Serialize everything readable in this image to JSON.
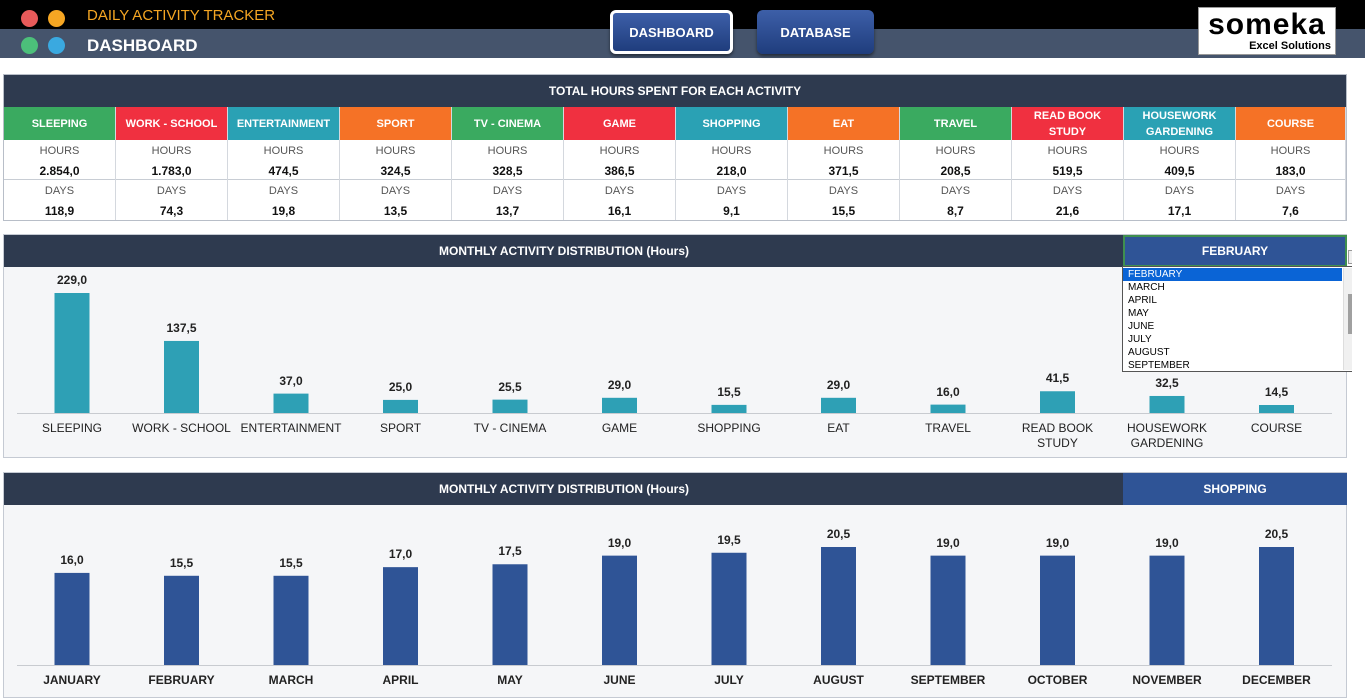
{
  "header": {
    "subtitle": "DAILY ACTIVITY TRACKER",
    "title": "DASHBOARD",
    "nav": [
      {
        "label": "DASHBOARD",
        "active": true
      },
      {
        "label": "DATABASE",
        "active": false
      }
    ],
    "brand": {
      "name": "someka",
      "tagline": "Excel Solutions"
    },
    "icon_names": [
      "apple-icon",
      "music-icon",
      "chat-icon",
      "people-icon"
    ]
  },
  "totals": {
    "title": "TOTAL HOURS SPENT FOR EACH ACTIVITY",
    "hours_label": "HOURS",
    "days_label": "DAYS",
    "activities": [
      {
        "name": "SLEEPING",
        "hours": "2.854,0",
        "days": "118,9",
        "color": "#3aaa60"
      },
      {
        "name": "WORK - SCHOOL",
        "hours": "1.783,0",
        "days": "74,3",
        "color": "#f03040"
      },
      {
        "name": "ENTERTAINMENT",
        "hours": "474,5",
        "days": "19,8",
        "color": "#2aa1b4"
      },
      {
        "name": "SPORT",
        "hours": "324,5",
        "days": "13,5",
        "color": "#f57226"
      },
      {
        "name": "TV - CINEMA",
        "hours": "328,5",
        "days": "13,7",
        "color": "#3aaa60"
      },
      {
        "name": "GAME",
        "hours": "386,5",
        "days": "16,1",
        "color": "#f03040"
      },
      {
        "name": "SHOPPING",
        "hours": "218,0",
        "days": "9,1",
        "color": "#2aa1b4"
      },
      {
        "name": "EAT",
        "hours": "371,5",
        "days": "15,5",
        "color": "#f57226"
      },
      {
        "name": "TRAVEL",
        "hours": "208,5",
        "days": "8,7",
        "color": "#3aaa60"
      },
      {
        "name": "READ BOOK STUDY",
        "hours": "519,5",
        "days": "21,6",
        "color": "#f03040"
      },
      {
        "name": "HOUSEWORK GARDENING",
        "hours": "409,5",
        "days": "17,1",
        "color": "#2aa1b4"
      },
      {
        "name": "COURSE",
        "hours": "183,0",
        "days": "7,6",
        "color": "#f57226"
      }
    ]
  },
  "panel1": {
    "title": "MONTHLY ACTIVITY DISTRIBUTION (Hours)",
    "selected": "FEBRUARY",
    "dropdown_options": [
      "FEBRUARY",
      "MARCH",
      "APRIL",
      "MAY",
      "JUNE",
      "JULY",
      "AUGUST",
      "SEPTEMBER"
    ]
  },
  "panel2": {
    "title": "MONTHLY ACTIVITY DISTRIBUTION (Hours)",
    "selected": "SHOPPING"
  },
  "chart_data": [
    {
      "type": "bar",
      "title": "MONTHLY ACTIVITY DISTRIBUTION (Hours)",
      "color": "#2ea0b5",
      "categories": [
        "SLEEPING",
        "WORK - SCHOOL",
        "ENTERTAINMENT",
        "SPORT",
        "TV - CINEMA",
        "GAME",
        "SHOPPING",
        "EAT",
        "TRAVEL",
        "READ BOOK STUDY",
        "HOUSEWORK GARDENING",
        "COURSE"
      ],
      "values": [
        229.0,
        137.5,
        37.0,
        25.0,
        25.5,
        29.0,
        15.5,
        29.0,
        16.0,
        41.5,
        32.5,
        14.5
      ],
      "labels": [
        "229,0",
        "137,5",
        "37,0",
        "25,0",
        "25,5",
        "29,0",
        "15,5",
        "29,0",
        "16,0",
        "41,5",
        "32,5",
        "14,5"
      ],
      "ylim": [
        0,
        229
      ],
      "grid": false
    },
    {
      "type": "bar",
      "title": "MONTHLY ACTIVITY DISTRIBUTION (Hours)",
      "color": "#2f5496",
      "categories": [
        "JANUARY",
        "FEBRUARY",
        "MARCH",
        "APRIL",
        "MAY",
        "JUNE",
        "JULY",
        "AUGUST",
        "SEPTEMBER",
        "OCTOBER",
        "NOVEMBER",
        "DECEMBER"
      ],
      "values": [
        16.0,
        15.5,
        15.5,
        17.0,
        17.5,
        19.0,
        19.5,
        20.5,
        19.0,
        19.0,
        19.0,
        20.5
      ],
      "labels": [
        "16,0",
        "15,5",
        "15,5",
        "17,0",
        "17,5",
        "19,0",
        "19,5",
        "20,5",
        "19,0",
        "19,0",
        "19,0",
        "20,5"
      ],
      "ylim": [
        0,
        20.5
      ],
      "grid": false
    }
  ]
}
